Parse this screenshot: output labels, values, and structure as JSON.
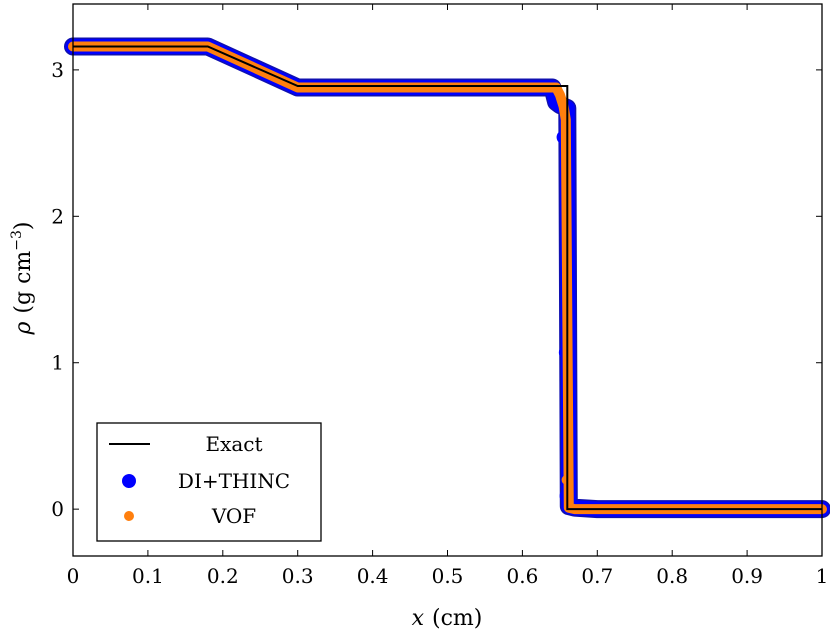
{
  "chart_data": {
    "type": "scatter",
    "title": "",
    "xlabel": {
      "symbol": "x",
      "unit": "(cm)"
    },
    "ylabel": {
      "symbol": "ρ",
      "unit_open": "(g cm",
      "unit_exp": "−3",
      "unit_close": ")"
    },
    "xlim": [
      0,
      1
    ],
    "ylim": [
      -0.32,
      3.45
    ],
    "xticks": [
      0,
      0.1,
      0.2,
      0.3,
      0.4,
      0.5,
      0.6,
      0.7,
      0.8,
      0.9,
      1
    ],
    "xtick_labels": [
      "0",
      "0.1",
      "0.2",
      "0.3",
      "0.4",
      "0.5",
      "0.6",
      "0.7",
      "0.8",
      "0.9",
      "1"
    ],
    "yticks": [
      0,
      1,
      2,
      3
    ],
    "ytick_labels": [
      "0",
      "1",
      "2",
      "3"
    ],
    "grid": false,
    "legend_position": "bottom-left",
    "colors": {
      "exact": "#000000",
      "di_thinc": "#0000ff",
      "vof": "#ff7f0e"
    },
    "series": [
      {
        "name": "Exact",
        "kind": "line",
        "x": [
          0,
          0.18,
          0.3,
          0.66,
          0.66,
          1.0
        ],
        "y": [
          3.16,
          3.16,
          2.89,
          2.89,
          0.0,
          0.0
        ]
      },
      {
        "name": "DI+THINC",
        "kind": "dense",
        "x": [
          0,
          0.18,
          0.3,
          0.64,
          0.645,
          0.65,
          0.66,
          0.662,
          0.67,
          0.7,
          1.0
        ],
        "y": [
          3.16,
          3.16,
          2.88,
          2.88,
          2.78,
          2.76,
          2.74,
          0.02,
          0.01,
          0.0,
          0.0
        ],
        "outliers": [
          {
            "x": 0.655,
            "y": 2.54
          },
          {
            "x": 0.658,
            "y": 1.07
          },
          {
            "x": 0.659,
            "y": 0.09
          }
        ]
      },
      {
        "name": "VOF",
        "kind": "dense",
        "x": [
          0,
          0.18,
          0.3,
          0.645,
          0.65,
          0.655,
          0.658,
          0.662,
          0.67,
          0.7,
          1.0
        ],
        "y": [
          3.16,
          3.16,
          2.88,
          2.88,
          2.83,
          2.75,
          2.66,
          0.01,
          0.0,
          0.0,
          0.0
        ],
        "outliers": [
          {
            "x": 0.659,
            "y": 0.2
          }
        ]
      }
    ]
  }
}
